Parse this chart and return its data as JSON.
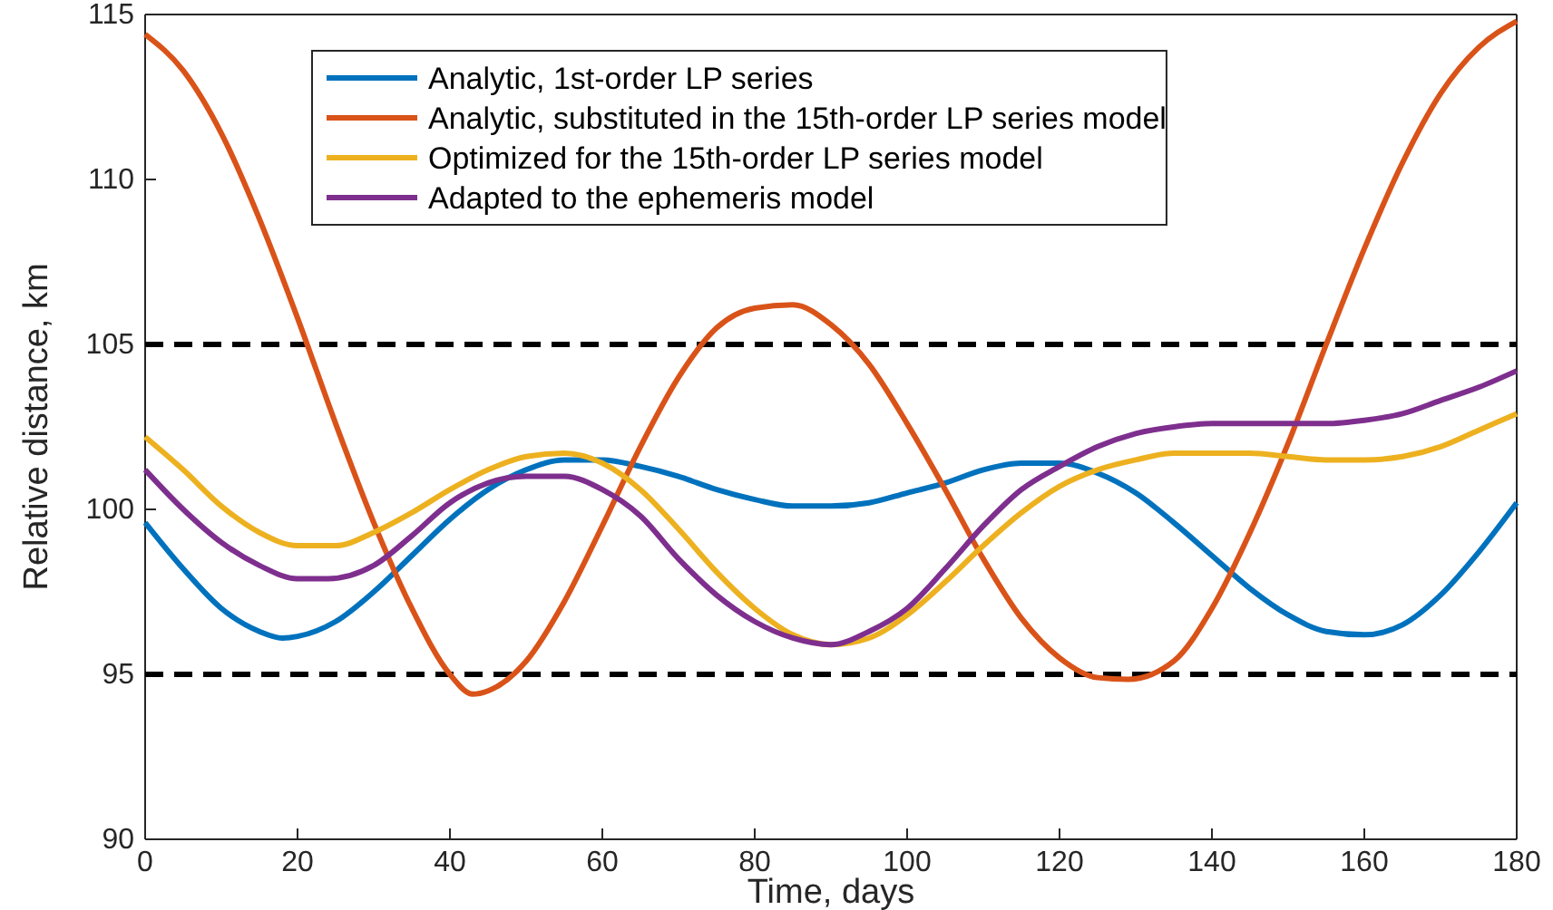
{
  "chart_data": {
    "type": "line",
    "xlabel": "Time, days",
    "ylabel": "Relative distance, km",
    "xlim": [
      0,
      180
    ],
    "xticks": [
      0,
      20,
      40,
      60,
      80,
      100,
      120,
      140,
      160,
      180
    ],
    "ylim": [
      90,
      115
    ],
    "yticks": [
      90,
      95,
      100,
      105,
      110,
      115
    ],
    "grid": false,
    "legend": "top left",
    "marker": "none",
    "ref_lines": [
      {
        "axis": "y",
        "value": 95,
        "color": "#000000",
        "line_style": "dashed"
      },
      {
        "axis": "y",
        "value": 105,
        "color": "#000000",
        "line_style": "dashed"
      }
    ],
    "series": [
      {
        "name": "Analytic, 1st-order LP series",
        "color": "#0072bd",
        "x": [
          0,
          5,
          10,
          15,
          18,
          20,
          25,
          30,
          35,
          40,
          45,
          50,
          55,
          60,
          65,
          70,
          75,
          80,
          85,
          90,
          95,
          100,
          105,
          110,
          115,
          120,
          125,
          130,
          135,
          140,
          145,
          150,
          155,
          160,
          165,
          170,
          175,
          180
        ],
        "values": [
          99.6,
          98.2,
          97.0,
          96.3,
          96.1,
          96.15,
          96.6,
          97.5,
          98.6,
          99.7,
          100.6,
          101.2,
          101.5,
          101.5,
          101.3,
          101.0,
          100.6,
          100.3,
          100.1,
          100.1,
          100.2,
          100.5,
          100.8,
          101.2,
          101.4,
          101.4,
          101.1,
          100.5,
          99.6,
          98.6,
          97.6,
          96.8,
          96.3,
          96.2,
          96.5,
          97.4,
          98.7,
          100.2
        ]
      },
      {
        "name": "Analytic, substituted in the 15th-order LP series model",
        "color": "#d95319",
        "x": [
          0,
          5,
          10,
          15,
          20,
          25,
          30,
          35,
          40,
          43,
          45,
          50,
          55,
          60,
          65,
          70,
          75,
          80,
          85,
          90,
          95,
          100,
          105,
          110,
          115,
          120,
          125,
          129,
          135,
          140,
          145,
          150,
          155,
          160,
          165,
          170,
          175,
          180
        ],
        "values": [
          114.4,
          113.3,
          111.4,
          108.8,
          105.8,
          102.6,
          99.6,
          97.0,
          95.0,
          94.4,
          94.5,
          95.4,
          97.2,
          99.5,
          101.9,
          104.0,
          105.5,
          106.1,
          106.2,
          105.6,
          104.4,
          102.6,
          100.6,
          98.5,
          96.7,
          95.5,
          94.9,
          94.85,
          95.4,
          97.0,
          99.3,
          102.0,
          105.0,
          107.9,
          110.5,
          112.6,
          114.0,
          114.8
        ]
      },
      {
        "name": "Optimized for the 15th-order LP series model",
        "color": "#edb120",
        "x": [
          0,
          5,
          10,
          15,
          20,
          25,
          30,
          35,
          40,
          45,
          50,
          55,
          60,
          65,
          70,
          75,
          80,
          85,
          90,
          95,
          100,
          105,
          110,
          115,
          120,
          125,
          130,
          135,
          140,
          145,
          150,
          155,
          160,
          165,
          170,
          175,
          180
        ],
        "values": [
          102.2,
          101.2,
          100.1,
          99.3,
          98.9,
          98.9,
          99.3,
          99.9,
          100.6,
          101.2,
          101.6,
          101.7,
          101.4,
          100.6,
          99.4,
          98.1,
          97.0,
          96.2,
          95.9,
          96.1,
          96.8,
          97.8,
          98.9,
          99.9,
          100.7,
          101.2,
          101.5,
          101.7,
          101.7,
          101.7,
          101.6,
          101.5,
          101.5,
          101.6,
          101.9,
          102.4,
          102.9
        ]
      },
      {
        "name": "Adapted to the ephemeris model",
        "color": "#7e2f8e",
        "x": [
          0,
          5,
          10,
          15,
          20,
          24,
          30,
          35,
          40,
          45,
          50,
          55,
          60,
          65,
          70,
          75,
          80,
          85,
          90,
          95,
          100,
          105,
          110,
          115,
          120,
          125,
          130,
          135,
          140,
          150,
          155,
          160,
          165,
          170,
          175,
          180
        ],
        "values": [
          101.2,
          100.0,
          99.0,
          98.3,
          97.9,
          97.9,
          98.3,
          99.2,
          100.2,
          100.8,
          101.0,
          101.0,
          100.6,
          99.8,
          98.5,
          97.4,
          96.6,
          96.1,
          95.9,
          96.3,
          97.0,
          98.2,
          99.5,
          100.6,
          101.3,
          101.9,
          102.3,
          102.5,
          102.6,
          102.6,
          102.6,
          102.7,
          102.9,
          103.3,
          103.7,
          104.2
        ]
      }
    ]
  }
}
